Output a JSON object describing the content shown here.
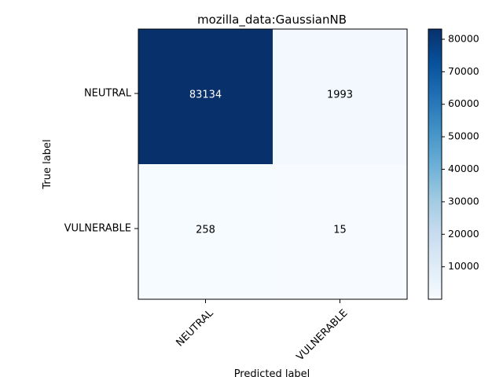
{
  "chart_data": {
    "type": "heatmap",
    "title": "mozilla_data:GaussianNB",
    "xlabel": "Predicted label",
    "ylabel": "True label",
    "x_categories": [
      "NEUTRAL",
      "VULNERABLE"
    ],
    "y_categories": [
      "NEUTRAL",
      "VULNERABLE"
    ],
    "values": [
      [
        83134,
        1993
      ],
      [
        258,
        15
      ]
    ],
    "colormap": "Blues",
    "colorbar": {
      "min": 15,
      "max": 83134,
      "ticks": [
        "10000",
        "20000",
        "30000",
        "40000",
        "50000",
        "60000",
        "70000",
        "80000"
      ]
    }
  }
}
